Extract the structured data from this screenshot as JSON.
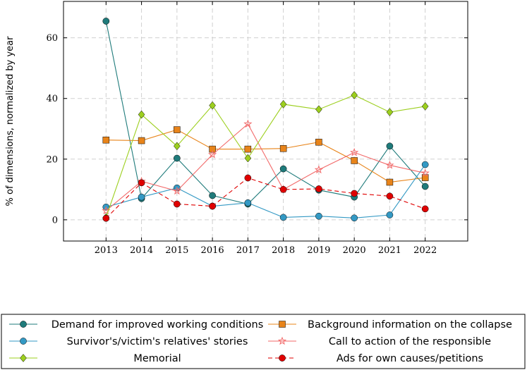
{
  "chart_data": {
    "type": "line",
    "ylabel": "% of dimensions, normalized by year",
    "xlabel": "",
    "x": [
      2013,
      2014,
      2015,
      2016,
      2017,
      2018,
      2019,
      2020,
      2021,
      2022
    ],
    "xlim": [
      2011.8,
      2023.2
    ],
    "ylim": [
      -7,
      72
    ],
    "yticks": [
      0,
      20,
      40,
      60
    ],
    "grid": true,
    "legend_position": "bottom",
    "series": [
      {
        "name": "Demand for improved working conditions",
        "color": "#1f7b7b",
        "marker": "circle",
        "dash": "solid",
        "values": [
          65.5,
          7.0,
          20.3,
          8.0,
          5.2,
          16.8,
          9.8,
          7.5,
          24.3,
          11.0
        ]
      },
      {
        "name": "Background information on the collapse",
        "color": "#e8841a",
        "marker": "square",
        "dash": "solid",
        "values": [
          26.3,
          26.1,
          29.7,
          23.3,
          23.3,
          23.5,
          25.6,
          19.5,
          12.4,
          13.9
        ]
      },
      {
        "name": "Survivor's/victim's relatives' stories",
        "color": "#3399c4",
        "marker": "circle",
        "dash": "solid",
        "values": [
          4.2,
          7.5,
          10.5,
          4.5,
          5.6,
          0.8,
          1.2,
          0.6,
          1.6,
          18.2
        ]
      },
      {
        "name": "Call to action of the responsible",
        "color": "#f26a6a",
        "marker": "star",
        "dash": "solid",
        "values": [
          3.0,
          12.7,
          9.5,
          21.5,
          31.6,
          10.0,
          16.5,
          22.2,
          18.0,
          15.4
        ]
      },
      {
        "name": "Memorial",
        "color": "#9ccf1e",
        "marker": "diamond",
        "dash": "solid",
        "values": [
          0.8,
          34.7,
          24.3,
          37.7,
          20.3,
          38.1,
          36.4,
          41.1,
          35.5,
          37.4
        ]
      },
      {
        "name": "Ads for own causes/petitions",
        "color": "#e00000",
        "marker": "circle",
        "dash": "dashed",
        "values": [
          0.5,
          12.2,
          5.2,
          4.5,
          13.8,
          10.0,
          10.2,
          8.7,
          7.8,
          3.6
        ]
      }
    ]
  }
}
